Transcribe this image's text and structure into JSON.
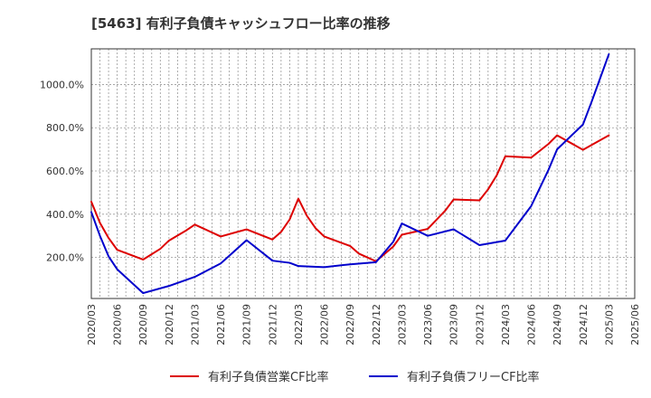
{
  "chart_data": {
    "type": "line",
    "title": "[5463]  有利子負債キャッシュフロー比率の推移",
    "xlabel": "",
    "ylabel": "",
    "x_ticks": [
      "2020/03",
      "2020/06",
      "2020/09",
      "2020/12",
      "2021/03",
      "2021/06",
      "2021/09",
      "2021/12",
      "2022/03",
      "2022/06",
      "2022/09",
      "2022/12",
      "2023/03",
      "2023/06",
      "2023/09",
      "2023/12",
      "2024/03",
      "2024/06",
      "2024/09",
      "2024/12",
      "2025/03",
      "2025/06"
    ],
    "y_ticks": [
      {
        "value": 200,
        "label": "200.0%"
      },
      {
        "value": 400,
        "label": "400.0%"
      },
      {
        "value": 600,
        "label": "600.0%"
      },
      {
        "value": 800,
        "label": "800.0%"
      },
      {
        "value": 1000,
        "label": "1000.0%"
      }
    ],
    "ylim": [
      10,
      1165
    ],
    "grid": true,
    "legend_position": "bottom",
    "series": [
      {
        "name": "有利子負債営業CF比率",
        "color": "#dd0000",
        "points": [
          [
            "2020/03",
            458
          ],
          [
            "2020/04",
            360
          ],
          [
            "2020/05",
            290
          ],
          [
            "2020/06",
            235
          ],
          [
            "2020/09",
            190
          ],
          [
            "2020/11",
            240
          ],
          [
            "2020/12",
            278
          ],
          [
            "2021/02",
            325
          ],
          [
            "2021/03",
            352
          ],
          [
            "2021/06",
            297
          ],
          [
            "2021/09",
            330
          ],
          [
            "2021/12",
            283
          ],
          [
            "2022/01",
            318
          ],
          [
            "2022/02",
            376
          ],
          [
            "2022/03",
            472
          ],
          [
            "2022/04",
            392
          ],
          [
            "2022/05",
            335
          ],
          [
            "2022/06",
            297
          ],
          [
            "2022/09",
            253
          ],
          [
            "2022/10",
            218
          ],
          [
            "2022/12",
            182
          ],
          [
            "2023/02",
            250
          ],
          [
            "2023/03",
            305
          ],
          [
            "2023/06",
            332
          ],
          [
            "2023/08",
            415
          ],
          [
            "2023/09",
            468
          ],
          [
            "2023/12",
            464
          ],
          [
            "2024/01",
            515
          ],
          [
            "2024/02",
            580
          ],
          [
            "2024/03",
            668
          ],
          [
            "2024/06",
            662
          ],
          [
            "2024/08",
            725
          ],
          [
            "2024/09",
            765
          ],
          [
            "2024/12",
            698
          ],
          [
            "2025/03",
            765
          ]
        ]
      },
      {
        "name": "有利子負債フリーCF比率",
        "color": "#0000cc",
        "points": [
          [
            "2020/03",
            410
          ],
          [
            "2020/04",
            300
          ],
          [
            "2020/05",
            205
          ],
          [
            "2020/06",
            145
          ],
          [
            "2020/09",
            35
          ],
          [
            "2020/12",
            68
          ],
          [
            "2021/03",
            110
          ],
          [
            "2021/06",
            172
          ],
          [
            "2021/09",
            280
          ],
          [
            "2021/12",
            185
          ],
          [
            "2022/02",
            175
          ],
          [
            "2022/03",
            160
          ],
          [
            "2022/06",
            155
          ],
          [
            "2022/09",
            168
          ],
          [
            "2022/12",
            178
          ],
          [
            "2023/02",
            272
          ],
          [
            "2023/03",
            357
          ],
          [
            "2023/06",
            300
          ],
          [
            "2023/09",
            330
          ],
          [
            "2023/12",
            257
          ],
          [
            "2024/03",
            278
          ],
          [
            "2024/06",
            438
          ],
          [
            "2024/08",
            605
          ],
          [
            "2024/09",
            700
          ],
          [
            "2024/12",
            815
          ],
          [
            "2025/01",
            920
          ],
          [
            "2025/02",
            1030
          ],
          [
            "2025/03",
            1140
          ]
        ]
      }
    ]
  }
}
